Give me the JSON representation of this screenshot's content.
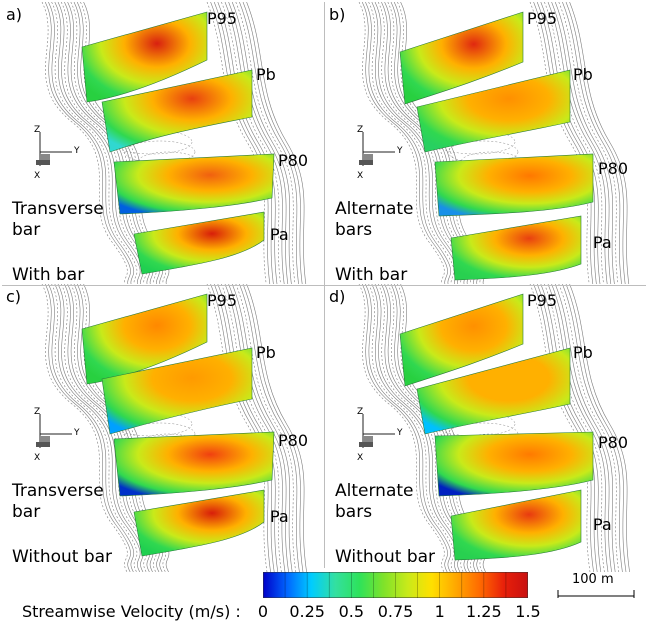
{
  "panels": [
    {
      "letter": "a)",
      "sections": [
        "P95",
        "Pb",
        "P80",
        "Pa"
      ],
      "bar_type": "Transverse bar",
      "condition": "With bar"
    },
    {
      "letter": "b)",
      "sections": [
        "P95",
        "Pb",
        "P80",
        "Pa"
      ],
      "bar_type": "Alternate bars",
      "condition": "With bar"
    },
    {
      "letter": "c)",
      "sections": [
        "P95",
        "Pb",
        "P80",
        "Pa"
      ],
      "bar_type": "Transverse bar",
      "condition": "Without bar"
    },
    {
      "letter": "d)",
      "sections": [
        "P95",
        "Pb",
        "P80",
        "Pa"
      ],
      "bar_type": "Alternate bars",
      "condition": "Without bar"
    }
  ],
  "axes_labels": {
    "z": "Z",
    "y": "Y",
    "x": "X"
  },
  "legend": {
    "title": "Streamwise Velocity (m/s) :",
    "ticks": [
      "0",
      "0.25",
      "0.5",
      "0.75",
      "1",
      "1.25",
      "1.5"
    ],
    "colors": [
      "#0000c8",
      "#0066ff",
      "#00ccff",
      "#33e0a0",
      "#2ee25a",
      "#7fe22a",
      "#c8ea1a",
      "#ffe000",
      "#ffa800",
      "#ff6a00",
      "#e8200a",
      "#c81010"
    ]
  },
  "scale_bar": {
    "label": "100 m"
  }
}
